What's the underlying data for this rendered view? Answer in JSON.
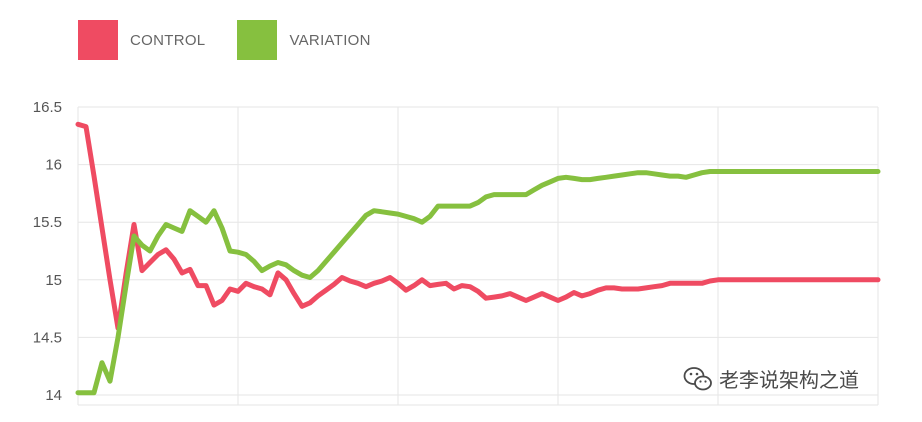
{
  "legend": [
    {
      "label": "CONTROL",
      "color": "#ef4b62"
    },
    {
      "label": "VARIATION",
      "color": "#86c03f"
    }
  ],
  "watermark": {
    "text": "老李说架构之道",
    "icon": "wechat-icon"
  },
  "chart_data": {
    "type": "line",
    "title": "",
    "xlabel": "",
    "ylabel": "",
    "ylim": [
      14,
      16.5
    ],
    "yticks": [
      "14",
      "14.5",
      "15",
      "15.5",
      "16",
      "16.5"
    ],
    "ytick_values": [
      14,
      14.5,
      15,
      15.5,
      16,
      16.5
    ],
    "grid": true,
    "legend_position": "top-left",
    "x": [
      0,
      1,
      2,
      3,
      4,
      5,
      6,
      7,
      8,
      9,
      10,
      11,
      12,
      13,
      14,
      15,
      16,
      17,
      18,
      19,
      20,
      21,
      22,
      23,
      24,
      25,
      26,
      27,
      28,
      29,
      30,
      31,
      32,
      33,
      34,
      35,
      36,
      37,
      38,
      39,
      40,
      41,
      42,
      43,
      44,
      45,
      46,
      47,
      48,
      49,
      50,
      51,
      52,
      53,
      54,
      55,
      56,
      57,
      58,
      59,
      60,
      61,
      62,
      63,
      64,
      65,
      66,
      67,
      68,
      69,
      70,
      71,
      72,
      73,
      74,
      75,
      76,
      77,
      78,
      79,
      80,
      81,
      82,
      83,
      84,
      85,
      86,
      87,
      88,
      89,
      90,
      91,
      92,
      93,
      94,
      95,
      96,
      97,
      98,
      99,
      100
    ],
    "series": [
      {
        "name": "CONTROL",
        "color": "#ef4b62",
        "values": [
          16.35,
          16.33,
          15.9,
          15.45,
          15.0,
          14.58,
          15.05,
          15.48,
          15.08,
          15.15,
          15.22,
          15.26,
          15.18,
          15.06,
          15.09,
          14.95,
          14.95,
          14.78,
          14.82,
          14.92,
          14.9,
          14.97,
          14.94,
          14.92,
          14.87,
          15.06,
          15.0,
          14.88,
          14.77,
          14.8,
          14.86,
          14.91,
          14.96,
          15.02,
          14.99,
          14.97,
          14.94,
          14.97,
          14.99,
          15.02,
          14.97,
          14.91,
          14.95,
          15.0,
          14.95,
          14.96,
          14.97,
          14.92,
          14.95,
          14.94,
          14.9,
          14.84,
          14.85,
          14.86,
          14.88,
          14.85,
          14.82,
          14.85,
          14.88,
          14.85,
          14.82,
          14.85,
          14.89,
          14.86,
          14.88,
          14.91,
          14.93,
          14.93,
          14.92,
          14.92,
          14.92,
          14.93,
          14.94,
          14.95,
          14.97,
          14.97,
          14.97,
          14.97,
          14.97,
          14.99,
          15.0,
          15.0,
          15.0,
          15.0,
          15.0,
          15.0,
          15.0,
          15.0,
          15.0,
          15.0,
          15.0,
          15.0,
          15.0,
          15.0,
          15.0,
          15.0,
          15.0,
          15.0,
          15.0,
          15.0,
          15.0
        ]
      },
      {
        "name": "VARIATION",
        "color": "#86c03f",
        "values": [
          14.02,
          14.02,
          14.02,
          14.28,
          14.12,
          14.5,
          14.95,
          15.38,
          15.3,
          15.25,
          15.38,
          15.48,
          15.45,
          15.42,
          15.6,
          15.55,
          15.5,
          15.6,
          15.45,
          15.25,
          15.24,
          15.22,
          15.16,
          15.08,
          15.12,
          15.15,
          15.13,
          15.08,
          15.04,
          15.02,
          15.08,
          15.16,
          15.24,
          15.32,
          15.4,
          15.48,
          15.56,
          15.6,
          15.59,
          15.58,
          15.57,
          15.55,
          15.53,
          15.5,
          15.55,
          15.64,
          15.64,
          15.64,
          15.64,
          15.64,
          15.67,
          15.72,
          15.74,
          15.74,
          15.74,
          15.74,
          15.74,
          15.78,
          15.82,
          15.85,
          15.88,
          15.89,
          15.88,
          15.87,
          15.87,
          15.88,
          15.89,
          15.9,
          15.91,
          15.92,
          15.93,
          15.93,
          15.92,
          15.91,
          15.9,
          15.9,
          15.89,
          15.91,
          15.93,
          15.94,
          15.94,
          15.94,
          15.94,
          15.94,
          15.94,
          15.94,
          15.94,
          15.94,
          15.94,
          15.94,
          15.94,
          15.94,
          15.94,
          15.94,
          15.94,
          15.94,
          15.94,
          15.94,
          15.94,
          15.94,
          15.94
        ]
      }
    ]
  }
}
